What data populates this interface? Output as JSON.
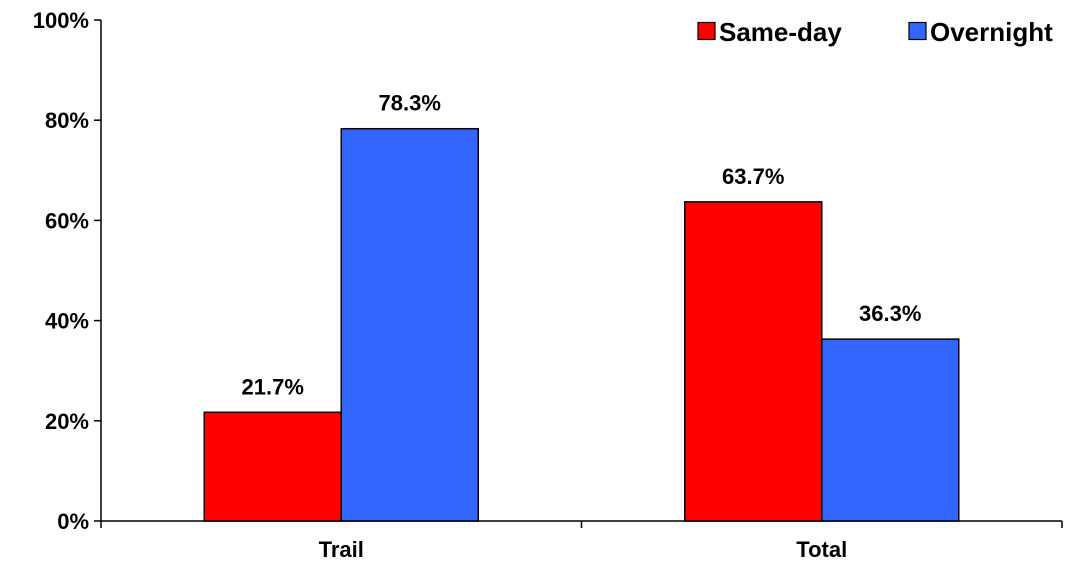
{
  "chart_data": {
    "type": "bar",
    "title": "",
    "xlabel": "",
    "ylabel": "",
    "categories": [
      "Trail",
      "Total"
    ],
    "series": [
      {
        "name": "Same-day",
        "color": "#ff0000",
        "values": [
          21.7,
          63.7
        ],
        "data_labels": [
          "21.7%",
          "63.7%"
        ]
      },
      {
        "name": "Overnight",
        "color": "#3366ff",
        "values": [
          78.3,
          36.3
        ],
        "data_labels": [
          "78.3%",
          "36.3%"
        ]
      }
    ],
    "ylim": [
      0,
      100
    ],
    "yticks": [
      0,
      20,
      40,
      60,
      80,
      100
    ],
    "ytick_labels": [
      "0%",
      "20%",
      "40%",
      "60%",
      "80%",
      "100%"
    ],
    "grid": false,
    "legend_position": "top-right"
  }
}
